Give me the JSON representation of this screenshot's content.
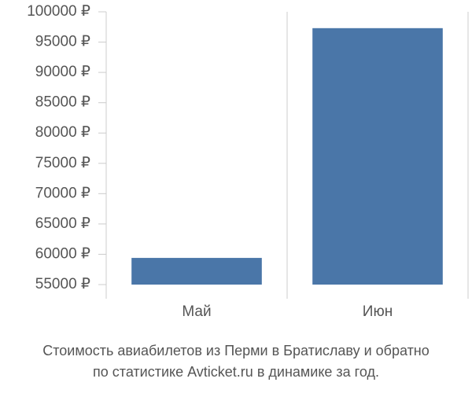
{
  "chart_data": {
    "type": "bar",
    "title": [
      "Стоимость авиабилетов из Перми в Братиславу и обратно",
      "по статистике Avticket.ru в динамике за год."
    ],
    "categories": [
      "Май",
      "Июн"
    ],
    "values": [
      59400,
      97300
    ],
    "color": "#4a76a8",
    "ylim": [
      55000,
      100000
    ],
    "yticks": [
      {
        "value": 55000,
        "label": "55000 ₽"
      },
      {
        "value": 60000,
        "label": "60000 ₽"
      },
      {
        "value": 65000,
        "label": "65000 ₽"
      },
      {
        "value": 70000,
        "label": "70000 ₽"
      },
      {
        "value": 75000,
        "label": "75000 ₽"
      },
      {
        "value": 80000,
        "label": "80000 ₽"
      },
      {
        "value": 85000,
        "label": "85000 ₽"
      },
      {
        "value": 90000,
        "label": "90000 ₽"
      },
      {
        "value": 95000,
        "label": "95000 ₽"
      },
      {
        "value": 100000,
        "label": "100000 ₽"
      }
    ],
    "grid": true
  }
}
